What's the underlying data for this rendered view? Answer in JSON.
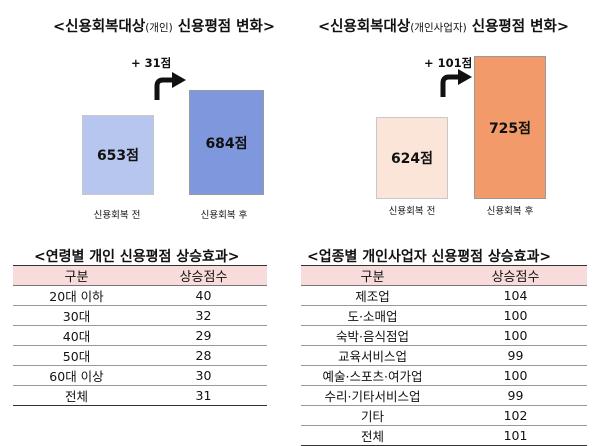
{
  "chart_data": [
    {
      "type": "bar",
      "title_prefix": "<신용회복대상",
      "title_small": "(개인)",
      "title_suffix": " 신용평점 변화>",
      "categories": [
        "신용회복 전",
        "신용회복 후"
      ],
      "values": [
        653,
        684
      ],
      "value_labels": [
        "653점",
        "684점"
      ],
      "increase_label": "+ 31점",
      "colors": [
        "#b7c6ee",
        "#7f97dd"
      ]
    },
    {
      "type": "bar",
      "title_prefix": "<신용회복대상",
      "title_small": "(개인사업자)",
      "title_suffix": " 신용평점 변화>",
      "categories": [
        "신용회복 전",
        "신용회복 후"
      ],
      "values": [
        624,
        725
      ],
      "value_labels": [
        "624점",
        "725점"
      ],
      "increase_label": "+ 101점",
      "colors": [
        "#fbe4d8",
        "#f29a6a"
      ]
    },
    {
      "type": "table",
      "title": "<연령별 개인 신용평점 상승효과>",
      "headers": [
        "구분",
        "상승점수"
      ],
      "rows": [
        [
          "20대 이하",
          "40"
        ],
        [
          "30대",
          "32"
        ],
        [
          "40대",
          "29"
        ],
        [
          "50대",
          "28"
        ],
        [
          "60대 이상",
          "30"
        ]
      ],
      "total": [
        "전체",
        "31"
      ]
    },
    {
      "type": "table",
      "title": "<업종별 개인사업자 신용평점 상승효과>",
      "headers": [
        "구분",
        "상승점수"
      ],
      "rows": [
        [
          "제조업",
          "104"
        ],
        [
          "도·소매업",
          "100"
        ],
        [
          "숙박·음식점업",
          "100"
        ],
        [
          "교육서비스업",
          "99"
        ],
        [
          "예술·스포츠·여가업",
          "100"
        ],
        [
          "수리·기타서비스업",
          "99"
        ],
        [
          "기타",
          "102"
        ]
      ],
      "total": [
        "전체",
        "101"
      ]
    }
  ]
}
